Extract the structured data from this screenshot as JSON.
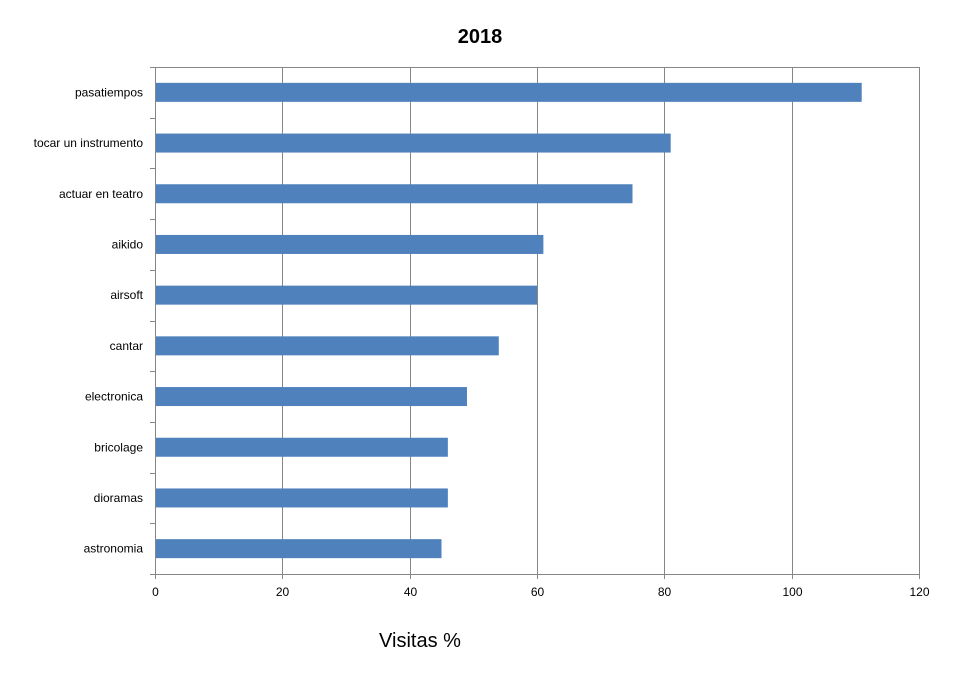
{
  "chart_data": {
    "type": "bar",
    "orientation": "horizontal",
    "title": "2018",
    "xlabel": "Visitas %",
    "ylabel": "",
    "categories": [
      "pasatiempos",
      "tocar un instrumento",
      "actuar en teatro",
      "aikido",
      "airsoft",
      "cantar",
      "electronica",
      "bricolage",
      "dioramas",
      "astronomia"
    ],
    "values": [
      111,
      81,
      75,
      61,
      60,
      54,
      49,
      46,
      46,
      45
    ],
    "xlim": [
      0,
      120
    ],
    "x_ticks": [
      0,
      20,
      40,
      60,
      80,
      100,
      120
    ],
    "grid": "vertical",
    "legend": "none",
    "bar_color": "#4F81BD",
    "grid_color": "#868686",
    "axis_color": "#868686"
  }
}
